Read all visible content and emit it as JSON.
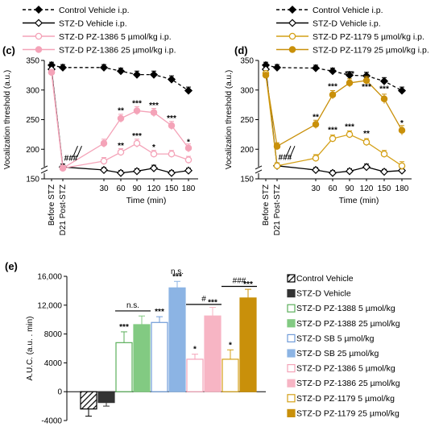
{
  "chart_data": [
    {
      "panel": "(c)",
      "type": "line",
      "ylabel": "Vocalization threshold (a.u.)",
      "xlabel": "Time (min)",
      "ylim": [
        150,
        350
      ],
      "yticks": [
        150,
        200,
        250,
        300,
        350
      ],
      "categories": [
        "Before STZ",
        "D21 Post-STZ",
        "30",
        "60",
        "90",
        "120",
        "150",
        "180"
      ],
      "legend": [
        "Control Vehicle i.p.",
        "STZ-D Vehicle i.p.",
        "STZ-D PZ-1386 5 µmol/kg i.p.",
        "STZ-D PZ-1386 25 µmol/kg i.p."
      ],
      "series": [
        {
          "name": "Control Vehicle i.p.",
          "color": "#000000",
          "style": "dashed",
          "marker": "diamond-filled",
          "values": [
            342,
            338,
            338,
            332,
            326,
            326,
            318,
            299
          ],
          "err": [
            5,
            5,
            5,
            5,
            6,
            6,
            6,
            6
          ]
        },
        {
          "name": "STZ-D Vehicle i.p.",
          "color": "#000000",
          "style": "solid",
          "marker": "diamond-open",
          "values": [
            335,
            170,
            165,
            160,
            163,
            168,
            160,
            164
          ],
          "err": [
            4,
            5,
            4,
            4,
            4,
            5,
            4,
            4
          ]
        },
        {
          "name": "STZ-D PZ-1386 5 µmol/kg i.p.",
          "color": "#F4A3B8",
          "style": "solid",
          "marker": "circle-open",
          "values": [
            330,
            168,
            180,
            195,
            210,
            192,
            192,
            182
          ],
          "err": [
            4,
            5,
            6,
            6,
            7,
            6,
            6,
            6
          ]
        },
        {
          "name": "STZ-D PZ-1386 25 µmol/kg i.p.",
          "color": "#F4A3B8",
          "style": "solid",
          "marker": "circle-filled",
          "values": [
            330,
            168,
            210,
            252,
            265,
            262,
            240,
            202
          ],
          "err": [
            4,
            5,
            7,
            7,
            7,
            7,
            7,
            7
          ]
        }
      ],
      "annotations": [
        {
          "text": "###",
          "at": "D21 Post-STZ",
          "y": 185
        },
        {
          "text": "**",
          "at": "60",
          "y": 265
        },
        {
          "text": "***",
          "at": "90",
          "y": 277
        },
        {
          "text": "***",
          "at": "120",
          "y": 274
        },
        {
          "text": "***",
          "at": "150",
          "y": 252
        },
        {
          "text": "*",
          "at": "180",
          "y": 212
        },
        {
          "text": "**",
          "at": "60",
          "y": 206
        },
        {
          "text": "***",
          "at": "90",
          "y": 222
        },
        {
          "text": "*",
          "at": "120",
          "y": 203
        }
      ]
    },
    {
      "panel": "(d)",
      "type": "line",
      "ylabel": "Vocalization threshold (a.u.)",
      "xlabel": "Time (min)",
      "ylim": [
        150,
        350
      ],
      "yticks": [
        150,
        200,
        250,
        300,
        350
      ],
      "categories": [
        "Before STZ",
        "D21 Post-STZ",
        "30",
        "60",
        "90",
        "120",
        "150",
        "180"
      ],
      "legend": [
        "Control Vehicle i.p.",
        "STZ-D Vehicle i.p.",
        "STZ-D PZ-1179 5 µmol/kg i.p.",
        "STZ-D PZ-1179 25 µmol/kg i.p."
      ],
      "series": [
        {
          "name": "Control Vehicle i.p.",
          "color": "#000000",
          "style": "dashed",
          "marker": "diamond-filled",
          "values": [
            342,
            338,
            337,
            332,
            325,
            324,
            315,
            299
          ],
          "err": [
            5,
            5,
            5,
            5,
            6,
            6,
            6,
            6
          ]
        },
        {
          "name": "STZ-D Vehicle i.p.",
          "color": "#000000",
          "style": "solid",
          "marker": "diamond-open",
          "values": [
            335,
            172,
            165,
            160,
            163,
            170,
            162,
            164
          ],
          "err": [
            4,
            5,
            4,
            4,
            4,
            5,
            4,
            4
          ]
        },
        {
          "name": "STZ-D PZ-1179 5 µmol/kg i.p.",
          "color": "#D4A017",
          "style": "solid",
          "marker": "circle-open",
          "values": [
            328,
            172,
            185,
            218,
            225,
            212,
            192,
            172
          ],
          "err": [
            4,
            5,
            6,
            6,
            6,
            6,
            6,
            7
          ]
        },
        {
          "name": "STZ-D PZ-1179 25 µmol/kg i.p.",
          "color": "#C9900A",
          "style": "solid",
          "marker": "circle-filled",
          "values": [
            325,
            205,
            242,
            292,
            312,
            316,
            285,
            232
          ],
          "err": [
            4,
            6,
            7,
            7,
            7,
            7,
            8,
            8
          ]
        }
      ],
      "annotations": [
        {
          "text": "###",
          "at": "D21 Post-STZ",
          "y": 186
        },
        {
          "text": "**",
          "at": "30",
          "y": 254
        },
        {
          "text": "***",
          "at": "60",
          "y": 306
        },
        {
          "text": "***",
          "at": "90",
          "y": 327
        },
        {
          "text": "***",
          "at": "120",
          "y": 305
        },
        {
          "text": "***",
          "at": "150",
          "y": 302
        },
        {
          "text": "*",
          "at": "180",
          "y": 244
        },
        {
          "text": "***",
          "at": "60",
          "y": 232
        },
        {
          "text": "***",
          "at": "90",
          "y": 238
        },
        {
          "text": "**",
          "at": "120",
          "y": 226
        }
      ]
    },
    {
      "panel": "(e)",
      "type": "bar",
      "ylabel": "A.U.C. (a.u. . min)",
      "ylim": [
        -4000,
        16000
      ],
      "yticks": [
        -4000,
        0,
        4000,
        8000,
        12000,
        16000
      ],
      "ytick_labels": [
        "-4000",
        "0",
        "4000",
        "8000",
        "12,000",
        "16,000"
      ],
      "bars": [
        {
          "name": "Control Vehicle",
          "value": -2400,
          "err": 1000,
          "fill": "hatch",
          "color": "#000000"
        },
        {
          "name": "STZ-D Vehicle",
          "value": -1500,
          "err": 500,
          "fill": "solid",
          "color": "#333333"
        },
        {
          "name": "STZ-D PZ-1388 5 µmol/kg",
          "value": 6800,
          "err": 1500,
          "fill": "open",
          "color": "#5BAF5B"
        },
        {
          "name": "STZ-D PZ-1388 25 µmol/kg",
          "value": 9300,
          "err": 1200,
          "fill": "solid",
          "color": "#82CA82"
        },
        {
          "name": "STZ-D SB 5 µmol/kg",
          "value": 9600,
          "err": 800,
          "fill": "open",
          "color": "#6F9BD8"
        },
        {
          "name": "STZ-D SB 25 µmol/kg",
          "value": 14400,
          "err": 900,
          "fill": "solid",
          "color": "#8CB4E4"
        },
        {
          "name": "STZ-D PZ-1386 5 µmol/kg",
          "value": 4500,
          "err": 700,
          "fill": "open",
          "color": "#F4A3B8"
        },
        {
          "name": "STZ-D PZ-1386 25 µmol/kg",
          "value": 10500,
          "err": 1200,
          "fill": "solid",
          "color": "#F7B5C4"
        },
        {
          "name": "STZ-D PZ-1179 5 µmol/kg",
          "value": 4500,
          "err": 1300,
          "fill": "open",
          "color": "#D4A017"
        },
        {
          "name": "STZ-D PZ-1179 25 µmol/kg",
          "value": 13000,
          "err": 1200,
          "fill": "solid",
          "color": "#C9900A"
        }
      ],
      "annotations": [
        {
          "text": "***",
          "bar": 2
        },
        {
          "text": "***",
          "bar": 4
        },
        {
          "text": "***",
          "bar": 5
        },
        {
          "text": "*",
          "bar": 6
        },
        {
          "text": "***",
          "bar": 7
        },
        {
          "text": "*",
          "bar": 8
        },
        {
          "text": "***",
          "bar": 9
        }
      ],
      "brackets": [
        {
          "text": "n.s.",
          "from": 2,
          "to": 3,
          "y": 11200
        },
        {
          "text": "n.s.",
          "from": 5,
          "to": 5,
          "y": 15900
        },
        {
          "text": "#",
          "from": 6,
          "to": 7,
          "y": 12100
        },
        {
          "text": "###",
          "from": 8,
          "to": 9,
          "y": 14600
        }
      ]
    }
  ]
}
